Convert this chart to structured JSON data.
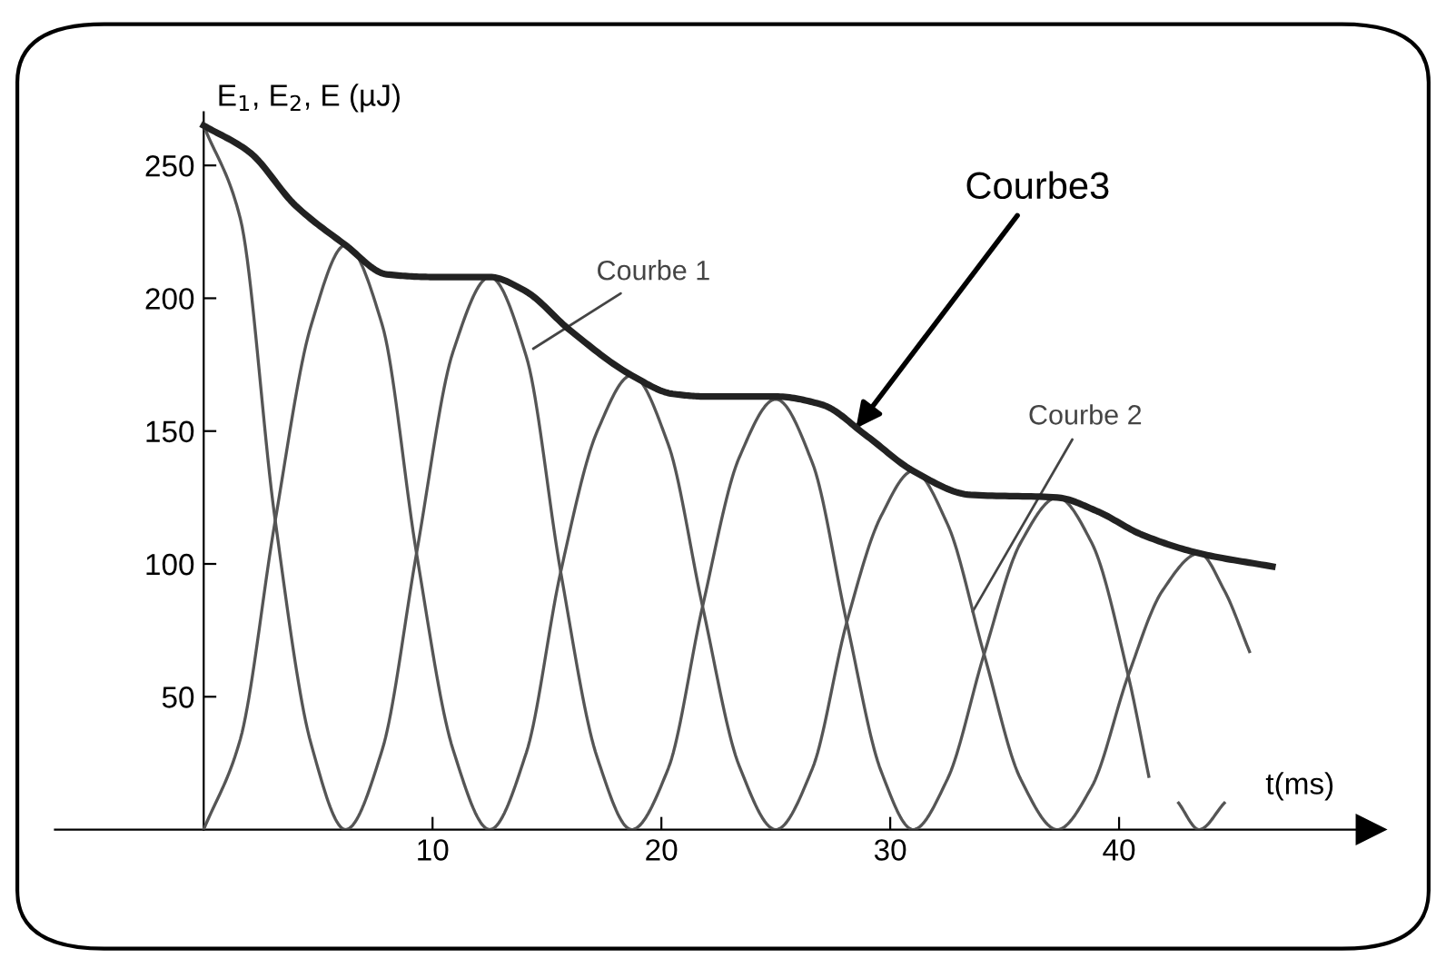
{
  "chart_data": {
    "type": "line",
    "ylabel": "E$_{1}$, E$_{2}$, E (µJ)",
    "xlabel": "t(ms)",
    "xlim": [
      -6.5,
      51
    ],
    "ylim": [
      0,
      270
    ],
    "xticks": [
      10,
      20,
      30,
      40
    ],
    "yticks": [
      50,
      100,
      150,
      200,
      250
    ],
    "grid": false,
    "legend": false,
    "marker": "none",
    "line_style": "solid",
    "series": [
      {
        "color": "#555555",
        "x": [
          0,
          1.6,
          3.1,
          4.7,
          6.2,
          7.8,
          9.3,
          10.9,
          12.5,
          14.1,
          15.6,
          17.2,
          18.7,
          20.3,
          21.8,
          23.4,
          25,
          26.6,
          28.1,
          29.6,
          31,
          32.5,
          34.1,
          35.7,
          37.3,
          38.8,
          40.4,
          41.3,
          42.2,
          42.6,
          43.5,
          44.6
        ],
        "values": [
          265,
          230,
          118,
          32,
          0,
          30,
          104,
          180,
          208,
          178,
          97,
          27,
          0,
          23,
          84,
          140,
          162,
          138,
          78,
          22,
          0,
          19,
          66,
          108,
          125,
          108,
          58,
          20,
          null,
          10,
          0,
          10
        ]
      },
      {
        "color": "#555555",
        "x": [
          0,
          1.6,
          3.1,
          4.7,
          6.2,
          7.8,
          9.3,
          10.9,
          12.5,
          14.1,
          15.6,
          17.2,
          18.7,
          20.3,
          21.8,
          23.4,
          25,
          26.6,
          28.1,
          29.6,
          31,
          32.5,
          34.1,
          35.7,
          37.3,
          38.8,
          40.4,
          41.9,
          43.5,
          44.6,
          45.7
        ],
        "values": [
          0,
          34,
          115,
          190,
          220,
          190,
          104,
          30,
          0,
          29,
          97,
          150,
          171,
          145,
          84,
          24,
          0,
          23,
          78,
          118,
          135,
          115,
          66,
          19,
          0,
          16,
          58,
          90,
          104,
          90,
          67
        ]
      },
      {
        "color": "#222222",
        "x": [
          0,
          2,
          4,
          6.2,
          8,
          10,
          12.5,
          14,
          16,
          18.7,
          20.5,
          22,
          25,
          27,
          29,
          31,
          33.5,
          37.3,
          39,
          41,
          43.5,
          46.7
        ],
        "values": [
          265,
          255,
          235,
          220,
          209,
          208,
          208,
          203,
          188,
          171,
          164,
          163,
          163,
          160,
          148,
          135,
          126,
          125,
          120,
          111,
          104,
          99
        ]
      }
    ],
    "annotations": [
      {
        "text": "Courbe 1",
        "x": 14.4,
        "y": 181
      },
      {
        "text": "Courbe 2",
        "x": 33.6,
        "y": 82
      },
      {
        "text": "Courbe3",
        "x": 28.5,
        "y": 151
      }
    ]
  }
}
